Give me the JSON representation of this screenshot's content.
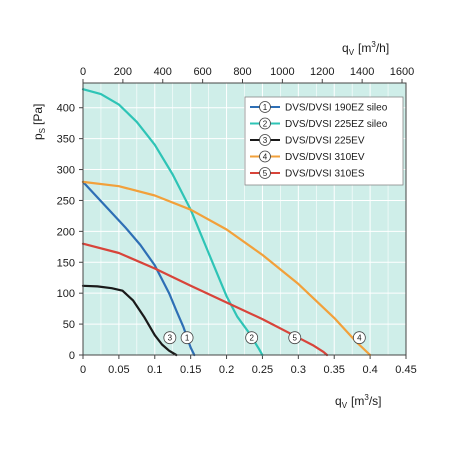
{
  "chart_data": {
    "type": "line",
    "x_axis": {
      "label_main": "q",
      "label_sub": "V",
      "label_unit": "[m",
      "label_sup": "3",
      "label_unit_end": "/s]",
      "range": [
        0,
        0.45
      ],
      "ticks": [
        "0",
        "0.05",
        "0.1",
        "0.15",
        "0.2",
        "0.25",
        "0.3",
        "0.35",
        "0.4",
        "0.45"
      ],
      "tick_values": [
        0,
        0.05,
        0.1,
        0.15,
        0.2,
        0.25,
        0.3,
        0.35,
        0.4,
        0.45
      ]
    },
    "x2_axis": {
      "label_main": "q",
      "label_sub": "V",
      "label_unit": "[m",
      "label_sup": "3",
      "label_unit_end": "/h]",
      "range": [
        0,
        1620
      ],
      "ticks": [
        "0",
        "200",
        "400",
        "600",
        "800",
        "1000",
        "1200",
        "1400",
        "1600"
      ],
      "tick_values": [
        0,
        200,
        400,
        600,
        800,
        1000,
        1200,
        1400,
        1600
      ]
    },
    "y_axis": {
      "label_main": "p",
      "label_sub": "S",
      "label_unit": "[Pa]",
      "range": [
        0,
        440
      ],
      "ticks": [
        "0",
        "50",
        "100",
        "150",
        "200",
        "250",
        "300",
        "350",
        "400"
      ],
      "tick_values": [
        0,
        50,
        100,
        150,
        200,
        250,
        300,
        350,
        400
      ]
    },
    "grid": true,
    "legend_position": "top-right",
    "series": [
      {
        "name": "DVS/DVSI 190EZ sileo",
        "number": "1",
        "color": "#2e6fb5",
        "x": [
          0,
          0.02,
          0.04,
          0.06,
          0.08,
          0.1,
          0.12,
          0.13,
          0.14,
          0.15,
          0.155
        ],
        "y": [
          280,
          255,
          230,
          205,
          178,
          145,
          100,
          72,
          45,
          12,
          0
        ],
        "marker": [
          0.145,
          28
        ]
      },
      {
        "name": "DVS/DVSI 225EZ sileo",
        "number": "2",
        "color": "#2ec4b6",
        "x": [
          0,
          0.025,
          0.05,
          0.075,
          0.1,
          0.125,
          0.15,
          0.175,
          0.2,
          0.215,
          0.23,
          0.245,
          0.25
        ],
        "y": [
          430,
          422,
          405,
          377,
          340,
          292,
          235,
          165,
          95,
          62,
          38,
          10,
          0
        ],
        "marker": [
          0.235,
          28
        ]
      },
      {
        "name": "DVS/DVSI 225EV",
        "number": "3",
        "color": "#1a1a1a",
        "x": [
          0,
          0.02,
          0.04,
          0.055,
          0.07,
          0.085,
          0.1,
          0.11,
          0.12,
          0.13
        ],
        "y": [
          112,
          111,
          108,
          104,
          88,
          62,
          32,
          17,
          7,
          0
        ],
        "marker": [
          0.121,
          28
        ]
      },
      {
        "name": "DVS/DVSI 310EV",
        "number": "4",
        "color": "#f2a03a",
        "x": [
          0,
          0.05,
          0.1,
          0.15,
          0.2,
          0.25,
          0.3,
          0.35,
          0.38,
          0.4
        ],
        "y": [
          280,
          273,
          258,
          235,
          203,
          162,
          115,
          60,
          22,
          0
        ],
        "marker": [
          0.385,
          28
        ]
      },
      {
        "name": "DVS/DVSI 310ES",
        "number": "5",
        "color": "#d8443a",
        "x": [
          0,
          0.05,
          0.1,
          0.15,
          0.2,
          0.25,
          0.3,
          0.32,
          0.335,
          0.34
        ],
        "y": [
          180,
          165,
          140,
          112,
          85,
          58,
          28,
          16,
          5,
          0
        ],
        "marker": [
          0.295,
          28
        ]
      }
    ]
  }
}
